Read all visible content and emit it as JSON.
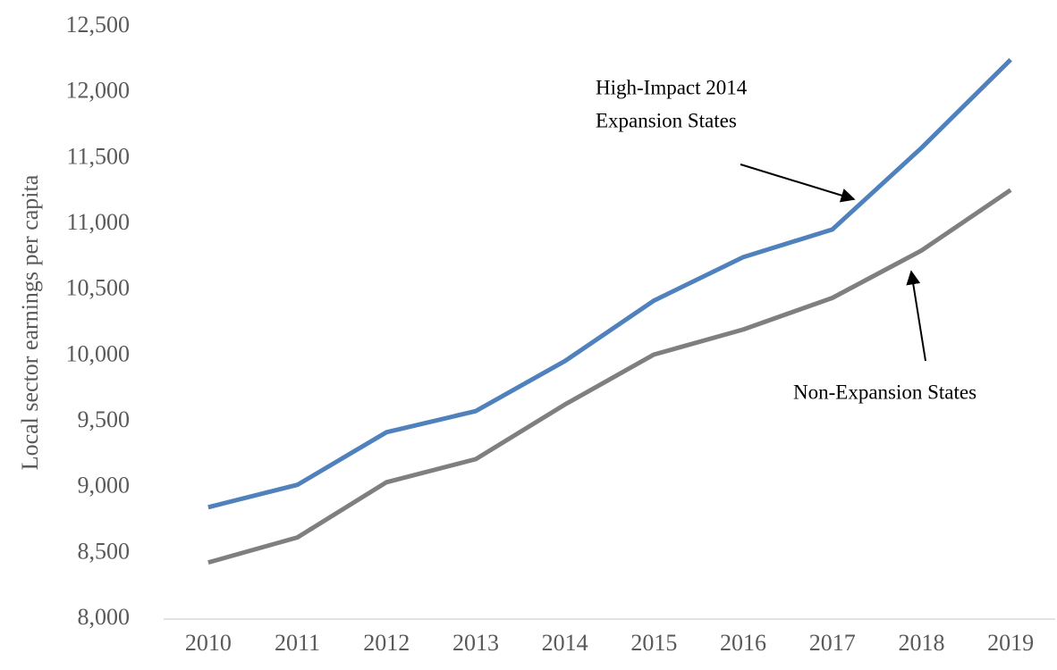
{
  "chart_data": {
    "type": "line",
    "y_label": "Local sector earnings per capita",
    "categories": [
      "2010",
      "2011",
      "2012",
      "2013",
      "2014",
      "2015",
      "2016",
      "2017",
      "2018",
      "2019"
    ],
    "series": [
      {
        "name": "High-Impact 2014 Expansion States",
        "color": "#4f81bd",
        "values": [
          8850,
          9020,
          9420,
          9580,
          9960,
          10420,
          10750,
          10960,
          11580,
          12250
        ]
      },
      {
        "name": "Non-Expansion States",
        "color": "#7f7f7f",
        "values": [
          8430,
          8620,
          9040,
          9215,
          9630,
          10010,
          10200,
          10440,
          10800,
          11260
        ]
      }
    ],
    "annotations": [
      "High-Impact 2014",
      "Expansion States",
      "Non-Expansion States"
    ],
    "ylim": [
      8000,
      12500
    ],
    "yticks": [
      {
        "value": 8000,
        "label": "8,000"
      },
      {
        "value": 8500,
        "label": "8,500"
      },
      {
        "value": 9000,
        "label": "9,000"
      },
      {
        "value": 9500,
        "label": "9,500"
      },
      {
        "value": 10000,
        "label": "10,000"
      },
      {
        "value": 10500,
        "label": "10,500"
      },
      {
        "value": 11000,
        "label": "11,000"
      },
      {
        "value": 11500,
        "label": "11,500"
      },
      {
        "value": 12000,
        "label": "12,000"
      },
      {
        "value": 12500,
        "label": "12,500"
      }
    ],
    "grid": false
  }
}
